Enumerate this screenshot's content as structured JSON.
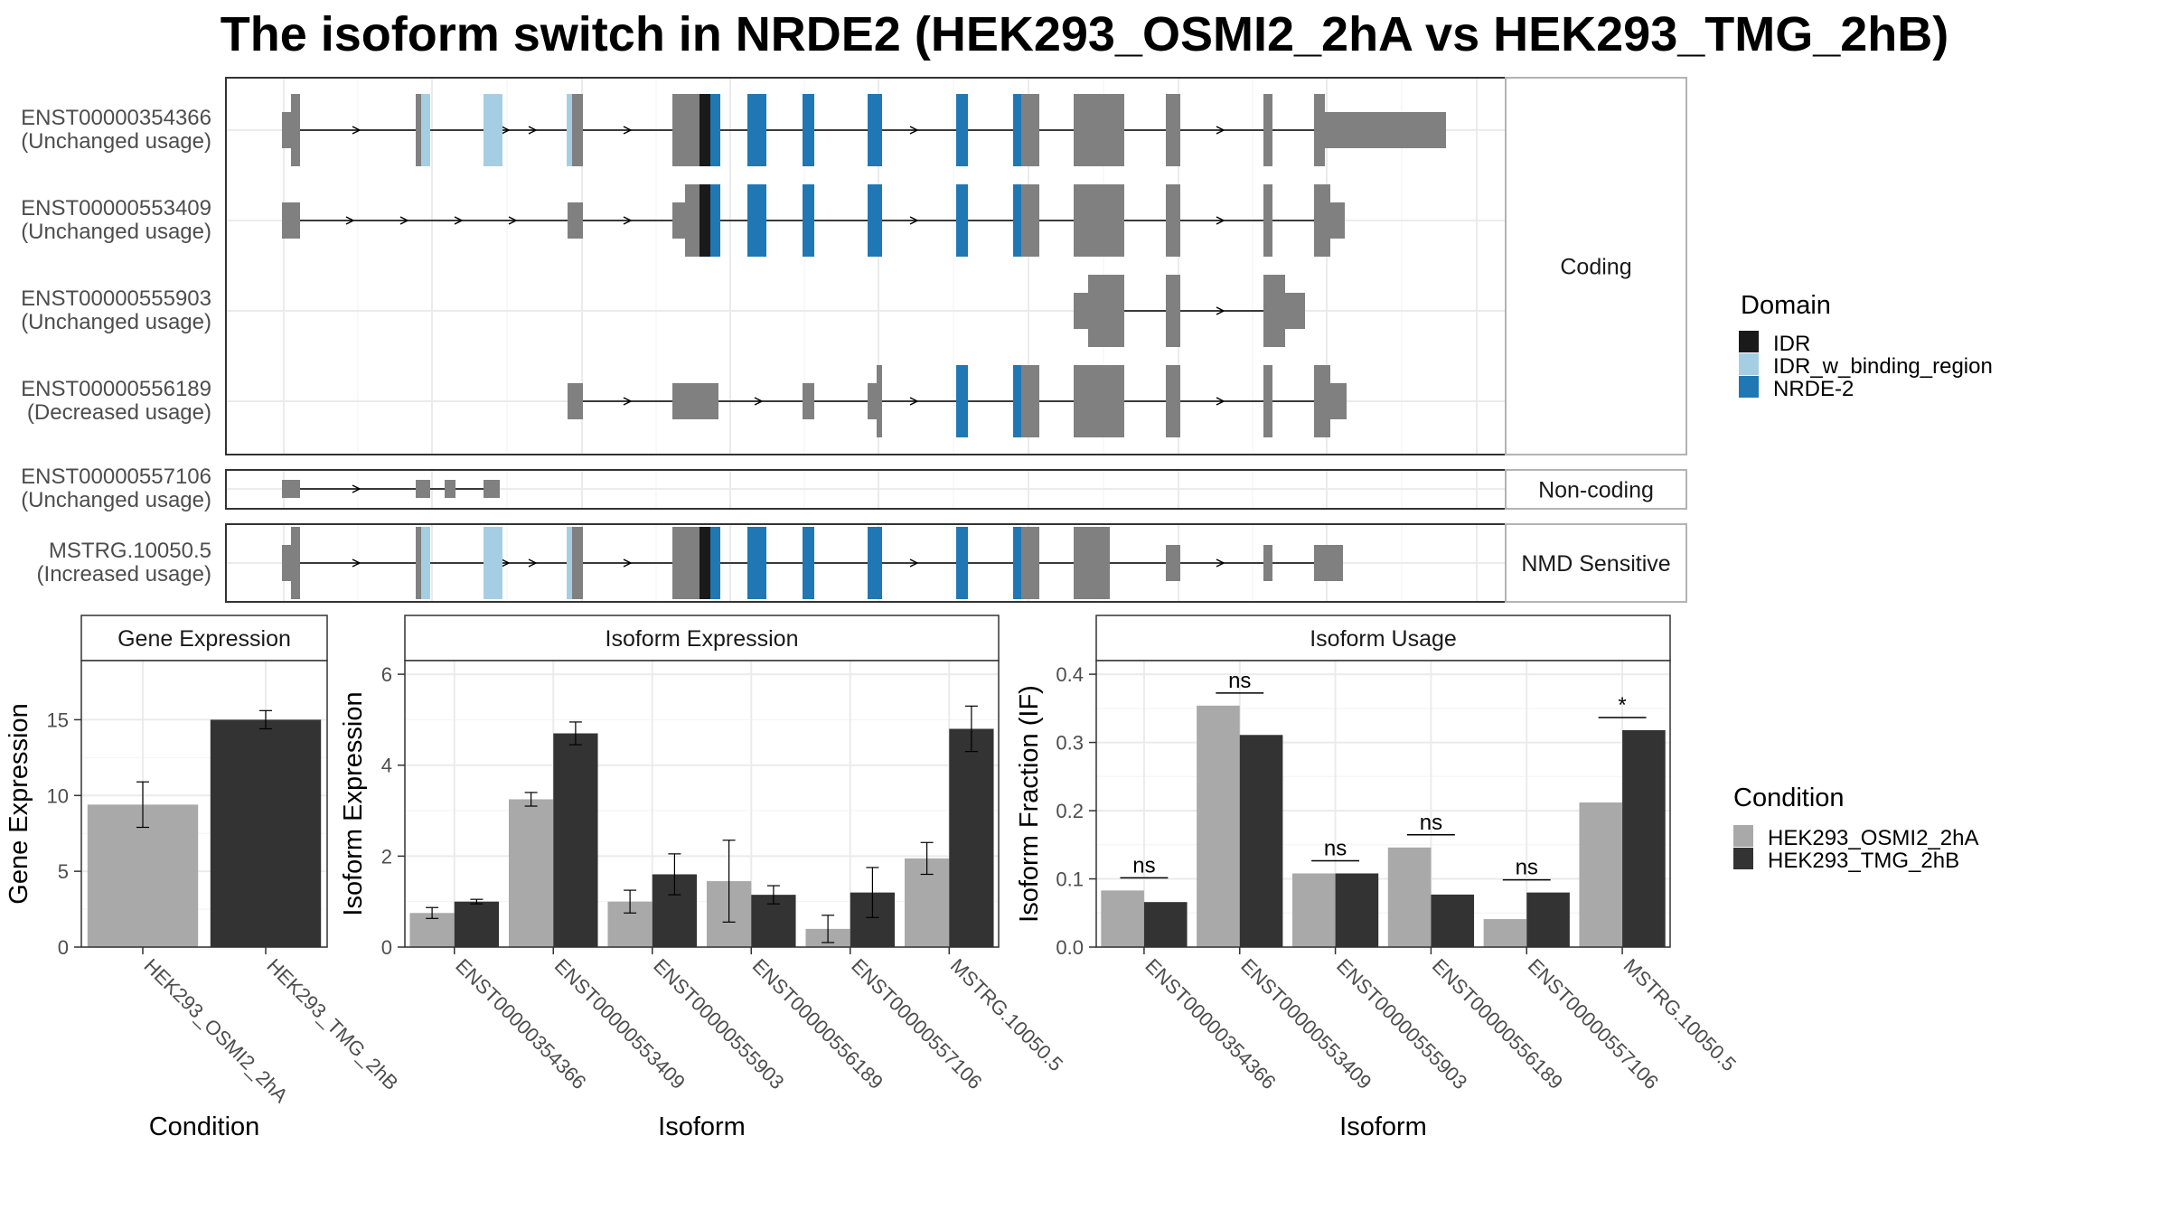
{
  "title": "The isoform switch in NRDE2 (HEK293_OSMI2_2hA vs HEK293_TMG_2hB)",
  "colors": {
    "exon": "#808080",
    "IDR": "#1a1a1a",
    "IDR_w_binding_region": "#a6cee3",
    "NRDE-2": "#1f78b4",
    "HEK293_OSMI2_2hA": "#a9a9a9",
    "HEK293_TMG_2hB": "#333333",
    "grid": "#ebebeb",
    "panel_border": "#333333",
    "strip_border": "#b3b3b3"
  },
  "structure": {
    "transcripts": [
      {
        "id": "ENST00000354366",
        "usage": "(Unchanged usage)",
        "group": "Coding"
      },
      {
        "id": "ENST00000553409",
        "usage": "(Unchanged usage)",
        "group": "Coding"
      },
      {
        "id": "ENST00000555903",
        "usage": "(Unchanged usage)",
        "group": "Coding"
      },
      {
        "id": "ENST00000556189",
        "usage": "(Decreased usage)",
        "group": "Coding"
      },
      {
        "id": "ENST00000557106",
        "usage": "(Unchanged usage)",
        "group": "Non-coding"
      },
      {
        "id": "MSTRG.10050.5",
        "usage": "(Increased usage)",
        "group": "NMD Sensitive"
      }
    ],
    "groups": [
      "Coding",
      "Non-coding",
      "NMD Sensitive"
    ]
  },
  "legend_domain": {
    "title": "Domain",
    "items": [
      "IDR",
      "IDR_w_binding_region",
      "NRDE-2"
    ]
  },
  "legend_condition": {
    "title": "Condition",
    "items": [
      "HEK293_OSMI2_2hA",
      "HEK293_TMG_2hB"
    ]
  },
  "chart_data": [
    {
      "type": "bar",
      "title": "Gene Expression",
      "xlabel": "Condition",
      "ylabel": "Gene Expression",
      "categories": [
        "HEK293_OSMI2_2hA",
        "HEK293_TMG_2hB"
      ],
      "values": [
        9.4,
        15.0
      ],
      "errors": [
        [
          7.9,
          10.9
        ],
        [
          14.4,
          15.6
        ]
      ],
      "yticks": [
        0,
        5,
        10,
        15
      ],
      "ylim": [
        0,
        18.9
      ]
    },
    {
      "type": "bar",
      "title": "Isoform Expression",
      "xlabel": "Isoform",
      "ylabel": "Isoform Expression",
      "categories": [
        "ENST00000354366",
        "ENST00000553409",
        "ENST00000555903",
        "ENST00000556189",
        "ENST00000557106",
        "MSTRG.10050.5"
      ],
      "series": [
        {
          "name": "HEK293_OSMI2_2hA",
          "values": [
            0.75,
            3.25,
            1.0,
            1.45,
            0.4,
            1.95
          ],
          "errors": [
            [
              0.63,
              0.87
            ],
            [
              3.1,
              3.4
            ],
            [
              0.75,
              1.25
            ],
            [
              0.55,
              2.35
            ],
            [
              0.1,
              0.7
            ],
            [
              1.6,
              2.3
            ]
          ]
        },
        {
          "name": "HEK293_TMG_2hB",
          "values": [
            1.0,
            4.7,
            1.6,
            1.15,
            1.2,
            4.8
          ],
          "errors": [
            [
              0.95,
              1.05
            ],
            [
              4.45,
              4.95
            ],
            [
              1.15,
              2.05
            ],
            [
              0.95,
              1.35
            ],
            [
              0.65,
              1.75
            ],
            [
              4.3,
              5.3
            ]
          ]
        }
      ],
      "yticks": [
        0,
        2,
        4,
        6
      ],
      "ylim": [
        0,
        6.3
      ]
    },
    {
      "type": "bar",
      "title": "Isoform Usage",
      "xlabel": "Isoform",
      "ylabel": "Isoform Fraction (IF)",
      "categories": [
        "ENST00000354366",
        "ENST00000553409",
        "ENST00000555903",
        "ENST00000556189",
        "ENST00000557106",
        "MSTRG.10050.5"
      ],
      "series": [
        {
          "name": "HEK293_OSMI2_2hA",
          "values": [
            0.083,
            0.354,
            0.108,
            0.146,
            0.041,
            0.212
          ]
        },
        {
          "name": "HEK293_TMG_2hB",
          "values": [
            0.066,
            0.311,
            0.108,
            0.077,
            0.08,
            0.318
          ]
        }
      ],
      "significance": [
        "ns",
        "ns",
        "ns",
        "ns",
        "ns",
        "*"
      ],
      "yticks": [
        0.0,
        0.1,
        0.2,
        0.3,
        0.4
      ],
      "ytick_labels": [
        "0.0",
        "0.1",
        "0.2",
        "0.3",
        "0.4"
      ],
      "ylim": [
        0,
        0.42
      ]
    }
  ]
}
